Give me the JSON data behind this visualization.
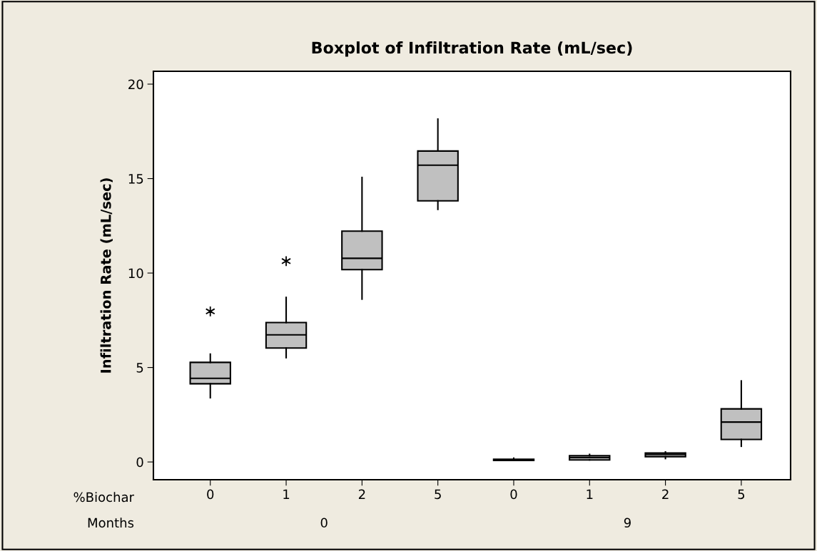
{
  "chart_data": {
    "type": "box",
    "title": "Boxplot of Infiltration Rate (mL/sec)",
    "ylabel": "Infiltration Rate (mL/sec)",
    "categories": [
      "0",
      "1",
      "2",
      "5",
      "0",
      "1",
      "2",
      "5"
    ],
    "annotations": [
      "%Biochar",
      "Months",
      "0",
      "9"
    ],
    "series": [
      {
        "color": "#c0c0c0",
        "boxes": [
          {
            "low": 3.4,
            "q1": 4.14,
            "median": 4.43,
            "q3": 5.27,
            "high": 5.71,
            "outliers": [
              7.97
            ]
          },
          {
            "low": 5.52,
            "q1": 6.03,
            "median": 6.73,
            "q3": 7.38,
            "high": 8.71,
            "outliers": [
              10.63
            ]
          },
          {
            "low": 8.62,
            "q1": 10.18,
            "median": 10.78,
            "q3": 12.22,
            "high": 15.06
          },
          {
            "low": 13.37,
            "q1": 13.82,
            "median": 15.71,
            "q3": 16.46,
            "high": 18.15
          },
          {
            "low": 0.08,
            "q1": 0.08,
            "median": 0.1,
            "q3": 0.14,
            "high": 0.2
          },
          {
            "low": 0.11,
            "q1": 0.11,
            "median": 0.23,
            "q3": 0.33,
            "high": 0.4
          },
          {
            "low": 0.18,
            "q1": 0.28,
            "median": 0.4,
            "q3": 0.47,
            "high": 0.53
          },
          {
            "low": 0.83,
            "q1": 1.19,
            "median": 2.11,
            "q3": 2.81,
            "high": 4.29
          }
        ]
      }
    ],
    "ylim": [
      -0.94,
      20.68
    ],
    "yticks": [
      0,
      5,
      10,
      15,
      20
    ],
    "grid": false,
    "legend": false
  }
}
